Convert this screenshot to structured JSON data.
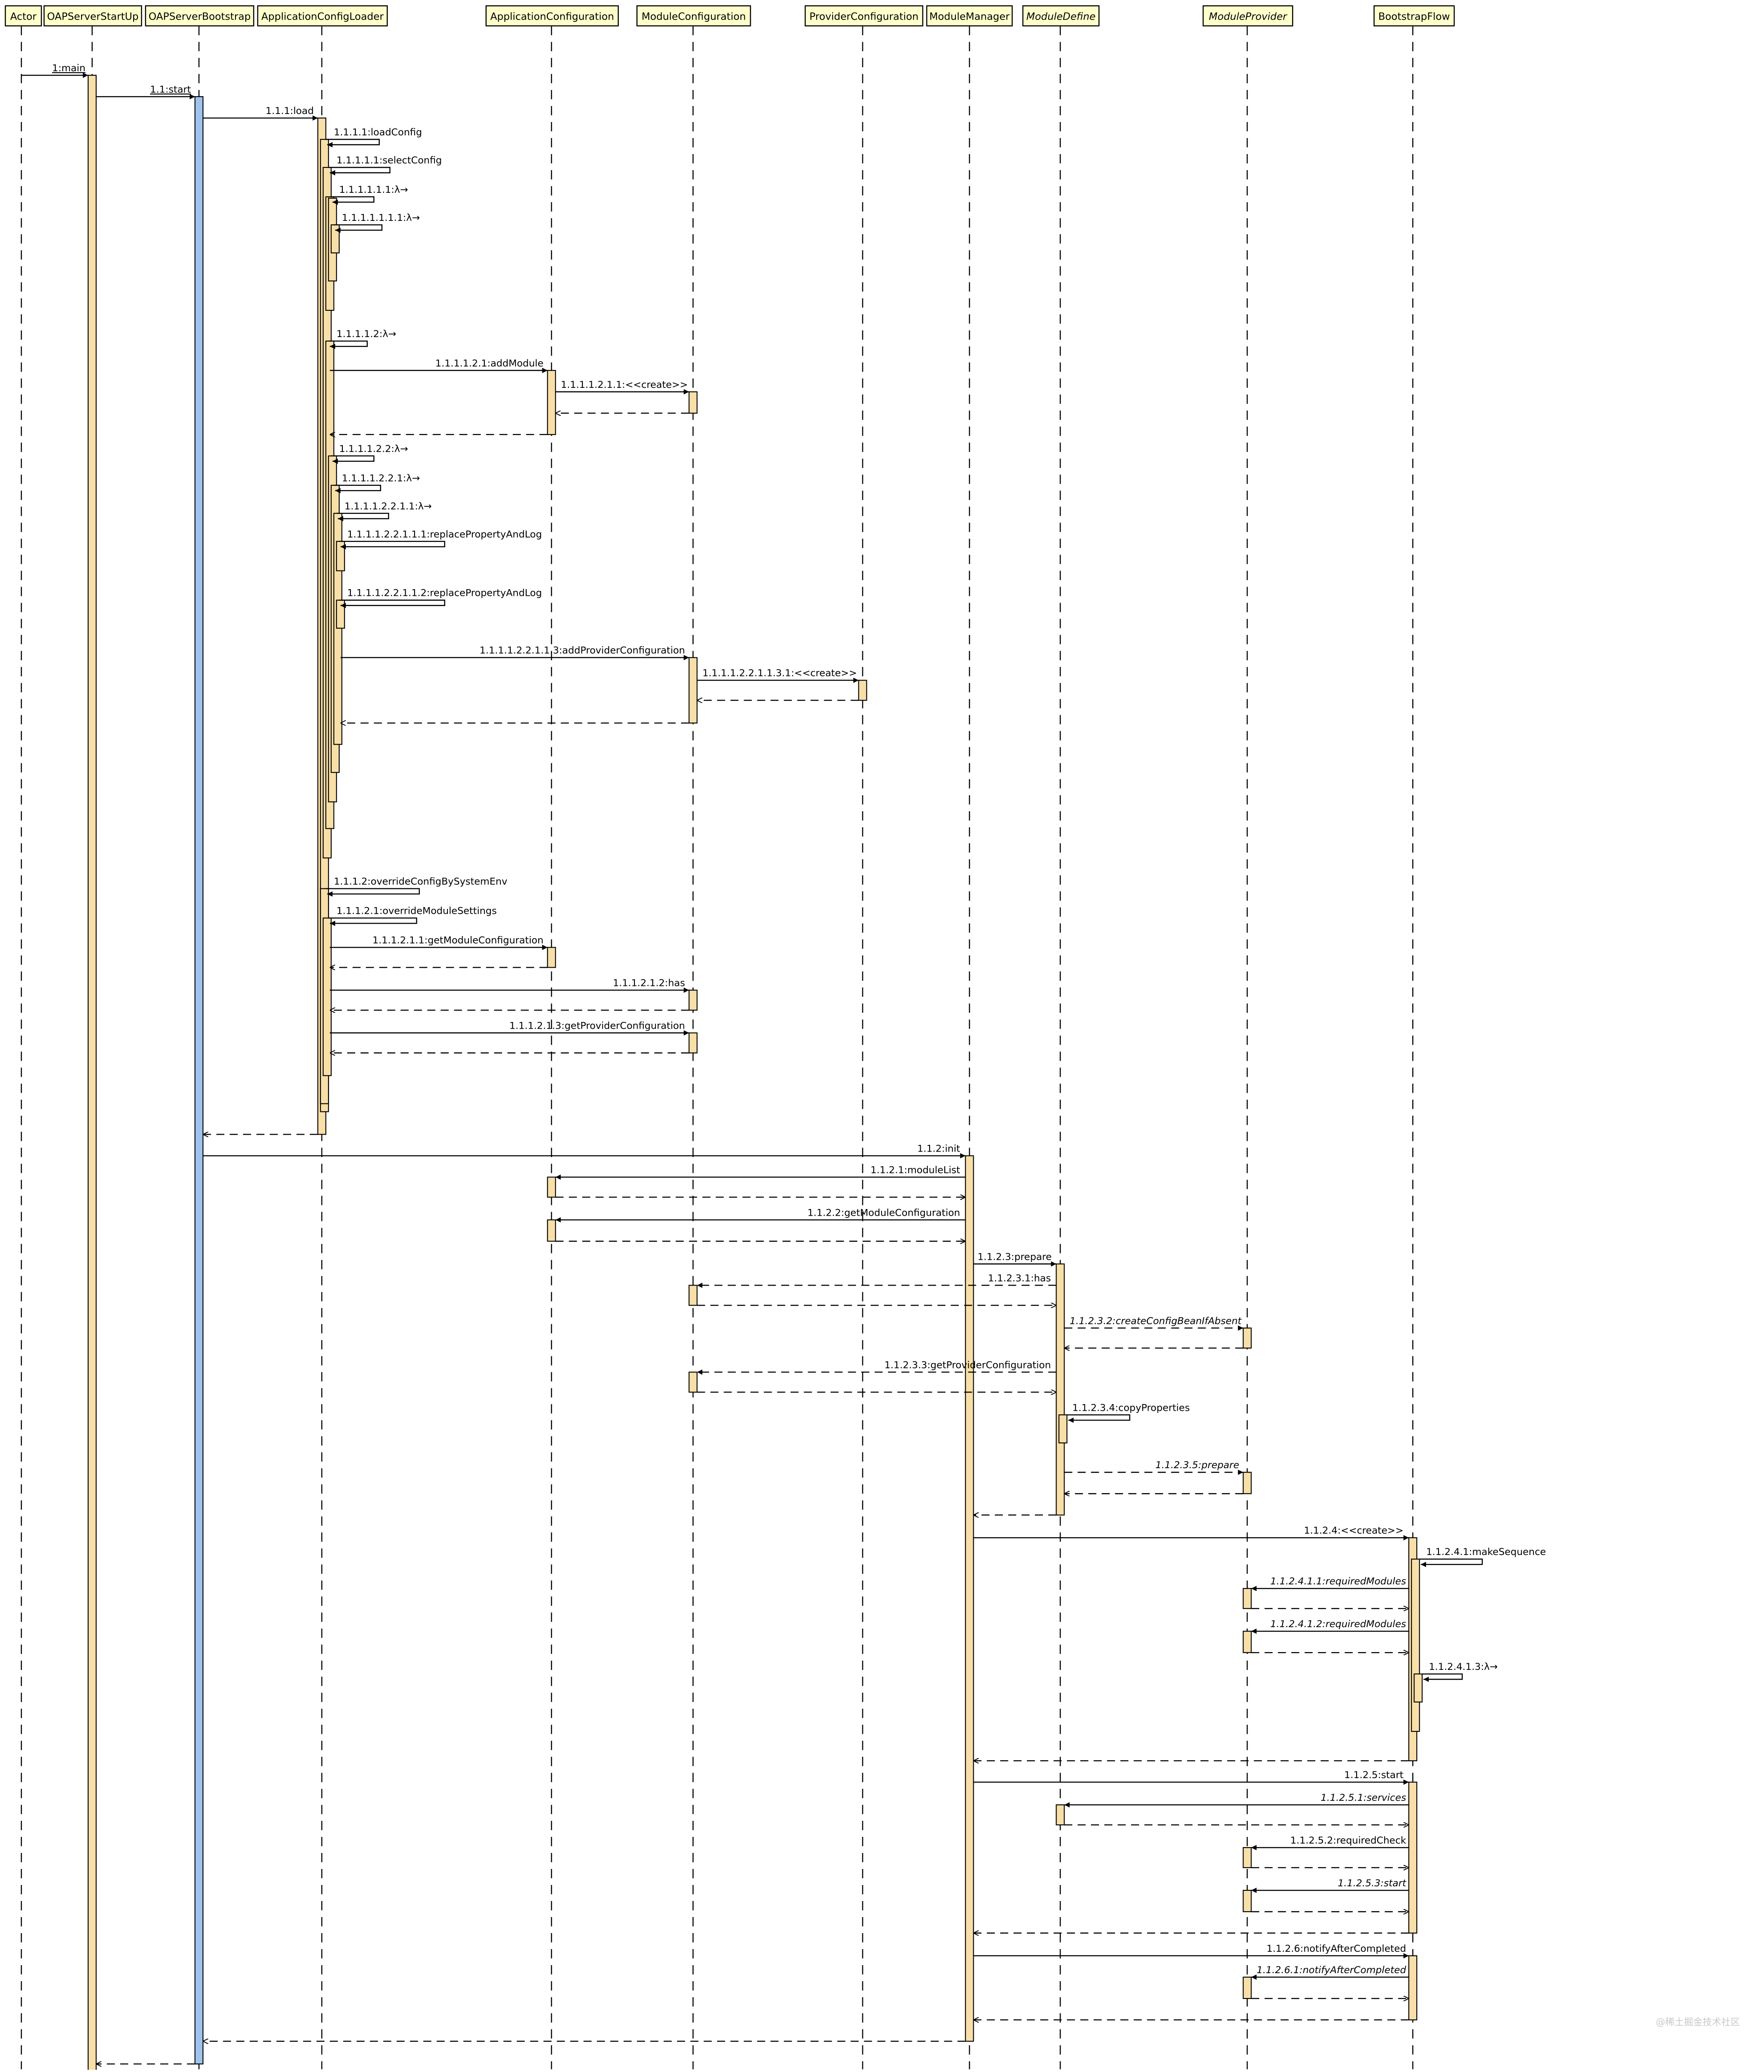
{
  "diagram": {
    "participants": [
      {
        "id": "actor",
        "label": "Actor",
        "italic": false
      },
      {
        "id": "startup",
        "label": "OAPServerStartUp",
        "italic": false
      },
      {
        "id": "bootstrap",
        "label": "OAPServerBootstrap",
        "italic": false
      },
      {
        "id": "loader",
        "label": "ApplicationConfigLoader",
        "italic": false
      },
      {
        "id": "appconf",
        "label": "ApplicationConfiguration",
        "italic": false
      },
      {
        "id": "modconf",
        "label": "ModuleConfiguration",
        "italic": false
      },
      {
        "id": "provconf",
        "label": "ProviderConfiguration",
        "italic": false
      },
      {
        "id": "modmgr",
        "label": "ModuleManager",
        "italic": false
      },
      {
        "id": "moddef",
        "label": "ModuleDefine",
        "italic": true
      },
      {
        "id": "modprov",
        "label": "ModuleProvider",
        "italic": true
      },
      {
        "id": "flow",
        "label": "BootstrapFlow",
        "italic": false
      }
    ],
    "messages": [
      {
        "id": "m1",
        "label": "1:main",
        "from": "actor",
        "to": "startup",
        "kind": "sync",
        "underline": true
      },
      {
        "id": "m2",
        "label": "1.1:start",
        "from": "startup",
        "to": "bootstrap",
        "kind": "sync",
        "underline": true
      },
      {
        "id": "m3",
        "label": "1.1.1:load",
        "from": "bootstrap",
        "to": "loader",
        "kind": "sync"
      },
      {
        "id": "m4",
        "label": "1.1.1.1:loadConfig",
        "from": "loader",
        "to": "loader",
        "kind": "self"
      },
      {
        "id": "m5",
        "label": "1.1.1.1.1:selectConfig",
        "from": "loader",
        "to": "loader",
        "kind": "self"
      },
      {
        "id": "m6",
        "label": "1.1.1.1.1.1:λ→",
        "from": "loader",
        "to": "loader",
        "kind": "self"
      },
      {
        "id": "m7",
        "label": "1.1.1.1.1.1.1:λ→",
        "from": "loader",
        "to": "loader",
        "kind": "self"
      },
      {
        "id": "m8",
        "label": "1.1.1.1.2:λ→",
        "from": "loader",
        "to": "loader",
        "kind": "self"
      },
      {
        "id": "m9",
        "label": "1.1.1.1.2.1:addModule",
        "from": "loader",
        "to": "appconf",
        "kind": "sync"
      },
      {
        "id": "m10",
        "label": "1.1.1.1.2.1.1:<<create>>",
        "from": "appconf",
        "to": "modconf",
        "kind": "sync"
      },
      {
        "id": "m11",
        "label": "",
        "from": "modconf",
        "to": "appconf",
        "kind": "return"
      },
      {
        "id": "m12",
        "label": "",
        "from": "appconf",
        "to": "loader",
        "kind": "return"
      },
      {
        "id": "m13",
        "label": "1.1.1.1.2.2:λ→",
        "from": "loader",
        "to": "loader",
        "kind": "self"
      },
      {
        "id": "m14",
        "label": "1.1.1.1.2.2.1:λ→",
        "from": "loader",
        "to": "loader",
        "kind": "self"
      },
      {
        "id": "m15",
        "label": "1.1.1.1.2.2.1.1:λ→",
        "from": "loader",
        "to": "loader",
        "kind": "self"
      },
      {
        "id": "m16",
        "label": "1.1.1.1.2.2.1.1.1:replacePropertyAndLog",
        "from": "loader",
        "to": "loader",
        "kind": "self"
      },
      {
        "id": "m17",
        "label": "1.1.1.1.2.2.1.1.2:replacePropertyAndLog",
        "from": "loader",
        "to": "loader",
        "kind": "self"
      },
      {
        "id": "m18",
        "label": "1.1.1.1.2.2.1.1.3:addProviderConfiguration",
        "from": "loader",
        "to": "modconf",
        "kind": "sync"
      },
      {
        "id": "m19",
        "label": "1.1.1.1.2.2.1.1.3.1:<<create>>",
        "from": "modconf",
        "to": "provconf",
        "kind": "sync"
      },
      {
        "id": "m20",
        "label": "",
        "from": "provconf",
        "to": "modconf",
        "kind": "return"
      },
      {
        "id": "m21",
        "label": "",
        "from": "modconf",
        "to": "loader",
        "kind": "return"
      },
      {
        "id": "m22",
        "label": "1.1.1.2:overrideConfigBySystemEnv",
        "from": "loader",
        "to": "loader",
        "kind": "self"
      },
      {
        "id": "m23",
        "label": "1.1.1.2.1:overrideModuleSettings",
        "from": "loader",
        "to": "loader",
        "kind": "self"
      },
      {
        "id": "m24",
        "label": "1.1.1.2.1.1:getModuleConfiguration",
        "from": "loader",
        "to": "appconf",
        "kind": "sync"
      },
      {
        "id": "m25",
        "label": "",
        "from": "appconf",
        "to": "loader",
        "kind": "return"
      },
      {
        "id": "m26",
        "label": "1.1.1.2.1.2:has",
        "from": "loader",
        "to": "modconf",
        "kind": "sync"
      },
      {
        "id": "m27",
        "label": "",
        "from": "modconf",
        "to": "loader",
        "kind": "return"
      },
      {
        "id": "m28",
        "label": "1.1.1.2.1.3:getProviderConfiguration",
        "from": "loader",
        "to": "modconf",
        "kind": "sync"
      },
      {
        "id": "m29",
        "label": "",
        "from": "modconf",
        "to": "loader",
        "kind": "return"
      },
      {
        "id": "m30",
        "label": "",
        "from": "loader",
        "to": "bootstrap",
        "kind": "return"
      },
      {
        "id": "m31",
        "label": "1.1.2:init",
        "from": "bootstrap",
        "to": "modmgr",
        "kind": "sync"
      },
      {
        "id": "m32",
        "label": "1.1.2.1:moduleList",
        "from": "modmgr",
        "to": "appconf",
        "kind": "sync"
      },
      {
        "id": "m33",
        "label": "",
        "from": "appconf",
        "to": "modmgr",
        "kind": "return"
      },
      {
        "id": "m34",
        "label": "1.1.2.2:getModuleConfiguration",
        "from": "modmgr",
        "to": "appconf",
        "kind": "sync"
      },
      {
        "id": "m35",
        "label": "",
        "from": "appconf",
        "to": "modmgr",
        "kind": "return"
      },
      {
        "id": "m36",
        "label": "1.1.2.3:prepare",
        "from": "modmgr",
        "to": "moddef",
        "kind": "sync"
      },
      {
        "id": "m37",
        "label": "1.1.2.3.1:has",
        "from": "moddef",
        "to": "modconf",
        "kind": "async"
      },
      {
        "id": "m38",
        "label": "",
        "from": "modconf",
        "to": "moddef",
        "kind": "return"
      },
      {
        "id": "m39",
        "label": "1.1.2.3.2:createConfigBeanIfAbsent",
        "from": "moddef",
        "to": "modprov",
        "kind": "async",
        "italic": true
      },
      {
        "id": "m40",
        "label": "",
        "from": "modprov",
        "to": "moddef",
        "kind": "return"
      },
      {
        "id": "m41",
        "label": "1.1.2.3.3:getProviderConfiguration",
        "from": "moddef",
        "to": "modconf",
        "kind": "async"
      },
      {
        "id": "m42",
        "label": "",
        "from": "modconf",
        "to": "moddef",
        "kind": "return"
      },
      {
        "id": "m43",
        "label": "1.1.2.3.4:copyProperties",
        "from": "moddef",
        "to": "moddef",
        "kind": "self"
      },
      {
        "id": "m44",
        "label": "1.1.2.3.5:prepare",
        "from": "moddef",
        "to": "modprov",
        "kind": "async",
        "italic": true
      },
      {
        "id": "m45",
        "label": "",
        "from": "modprov",
        "to": "moddef",
        "kind": "return"
      },
      {
        "id": "m46",
        "label": "",
        "from": "moddef",
        "to": "modmgr",
        "kind": "return"
      },
      {
        "id": "m47",
        "label": "1.1.2.4:<<create>>",
        "from": "modmgr",
        "to": "flow",
        "kind": "sync"
      },
      {
        "id": "m48",
        "label": "1.1.2.4.1:makeSequence",
        "from": "flow",
        "to": "flow",
        "kind": "self"
      },
      {
        "id": "m49",
        "label": "1.1.2.4.1.1:requiredModules",
        "from": "flow",
        "to": "modprov",
        "kind": "sync",
        "italic": true
      },
      {
        "id": "m50",
        "label": "",
        "from": "modprov",
        "to": "flow",
        "kind": "return"
      },
      {
        "id": "m51",
        "label": "1.1.2.4.1.2:requiredModules",
        "from": "flow",
        "to": "modprov",
        "kind": "sync",
        "italic": true
      },
      {
        "id": "m52",
        "label": "",
        "from": "modprov",
        "to": "flow",
        "kind": "return"
      },
      {
        "id": "m53",
        "label": "1.1.2.4.1.3:λ→",
        "from": "flow",
        "to": "flow",
        "kind": "self"
      },
      {
        "id": "m54",
        "label": "",
        "from": "flow",
        "to": "modmgr",
        "kind": "return"
      },
      {
        "id": "m55",
        "label": "1.1.2.5:start",
        "from": "modmgr",
        "to": "flow",
        "kind": "sync"
      },
      {
        "id": "m56",
        "label": "1.1.2.5.1:services",
        "from": "flow",
        "to": "moddef",
        "kind": "sync",
        "italic": true
      },
      {
        "id": "m57",
        "label": "",
        "from": "moddef",
        "to": "flow",
        "kind": "return"
      },
      {
        "id": "m58",
        "label": "1.1.2.5.2:requiredCheck",
        "from": "flow",
        "to": "modprov",
        "kind": "sync"
      },
      {
        "id": "m59",
        "label": "",
        "from": "modprov",
        "to": "flow",
        "kind": "return"
      },
      {
        "id": "m60",
        "label": "1.1.2.5.3:start",
        "from": "flow",
        "to": "modprov",
        "kind": "sync",
        "italic": true
      },
      {
        "id": "m61",
        "label": "",
        "from": "modprov",
        "to": "flow",
        "kind": "return"
      },
      {
        "id": "m62",
        "label": "",
        "from": "flow",
        "to": "modmgr",
        "kind": "return"
      },
      {
        "id": "m63",
        "label": "1.1.2.6:notifyAfterCompleted",
        "from": "modmgr",
        "to": "flow",
        "kind": "sync"
      },
      {
        "id": "m64",
        "label": "1.1.2.6.1:notifyAfterCompleted",
        "from": "flow",
        "to": "modprov",
        "kind": "sync",
        "italic": true
      },
      {
        "id": "m65",
        "label": "",
        "from": "modprov",
        "to": "flow",
        "kind": "return"
      },
      {
        "id": "m66",
        "label": "",
        "from": "flow",
        "to": "modmgr",
        "kind": "return"
      },
      {
        "id": "m67",
        "label": "",
        "from": "modmgr",
        "to": "bootstrap",
        "kind": "return"
      },
      {
        "id": "m68",
        "label": "",
        "from": "bootstrap",
        "to": "startup",
        "kind": "return"
      }
    ],
    "watermark": "@稀土掘金技术社区",
    "colors": {
      "header_fill": "#ffffcc",
      "activation_fill": "#f8dfa8",
      "bootstrap_activation_fill": "#9fc3ec",
      "line": "#000000",
      "watermark": "#c8c8c8"
    }
  }
}
